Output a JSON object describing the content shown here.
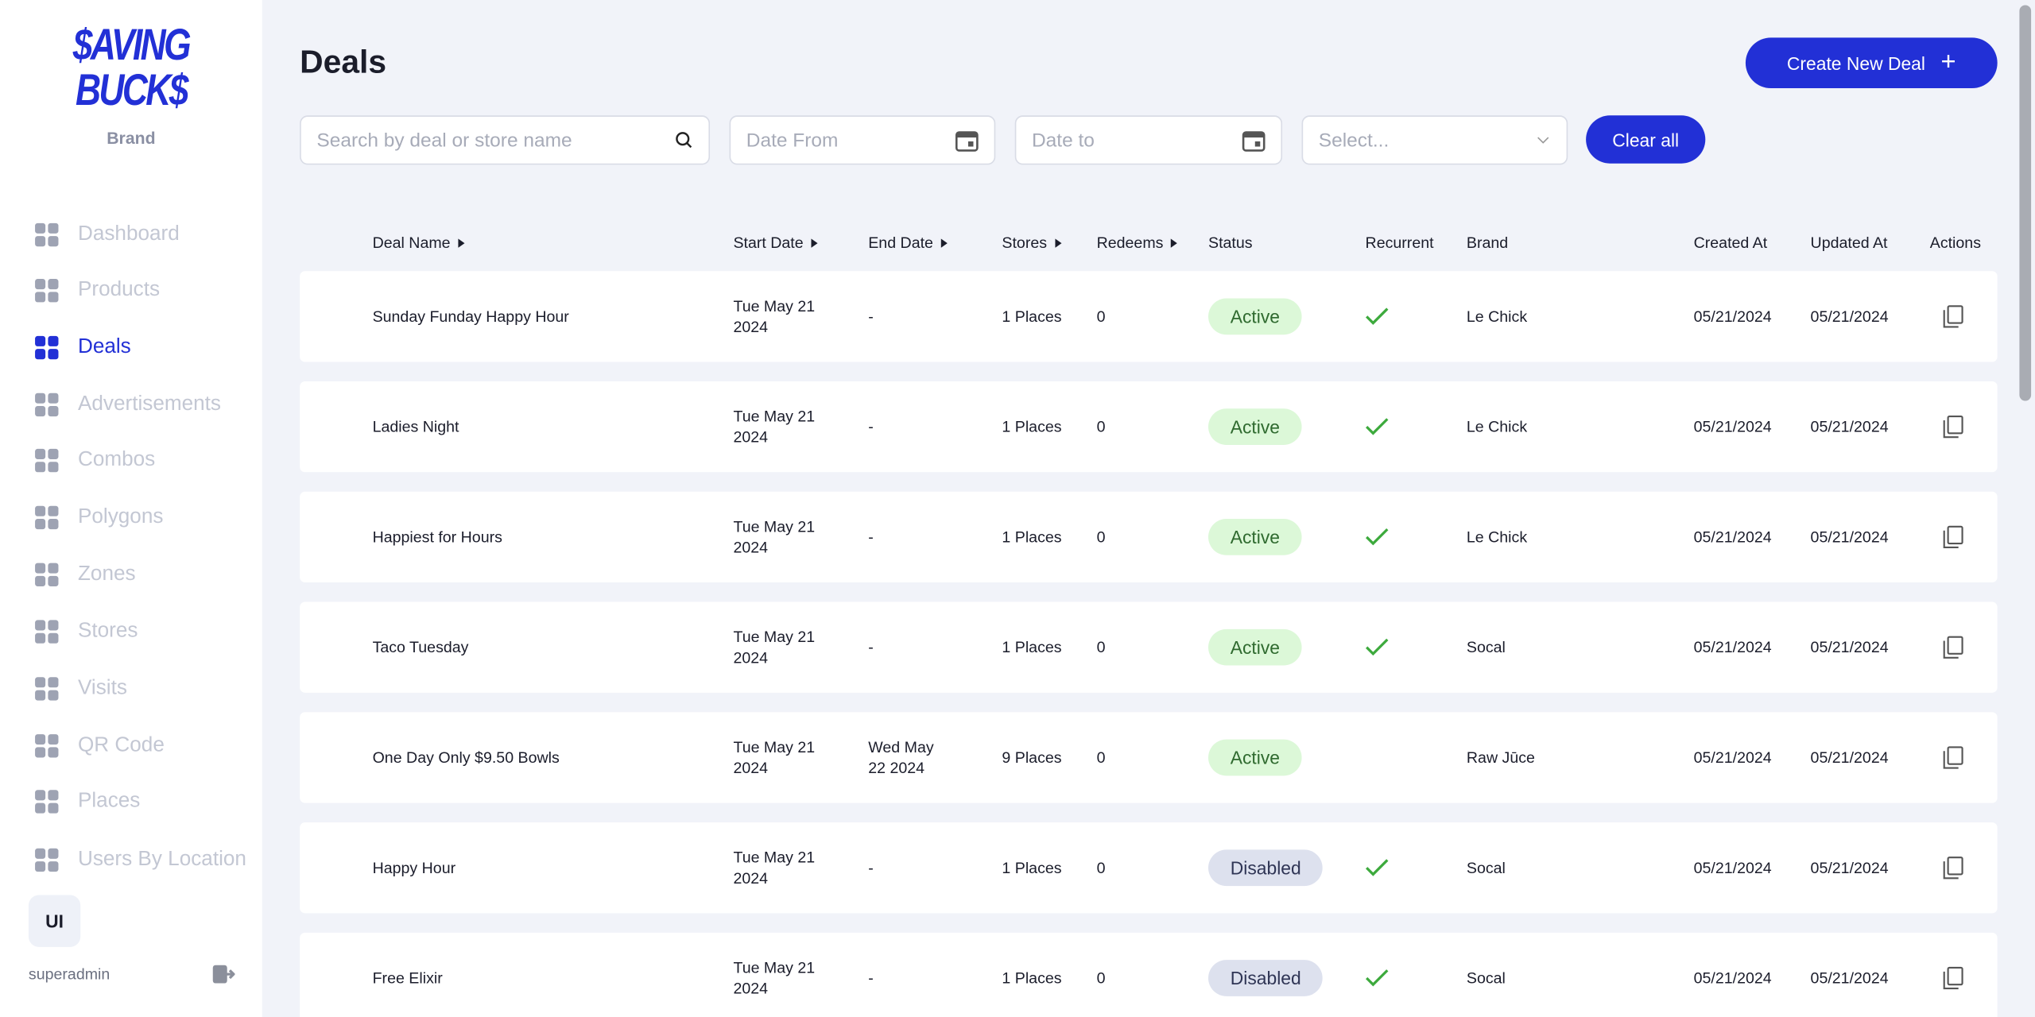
{
  "sidebar": {
    "logo_line1": "$AVING",
    "logo_line2": "BUCK$",
    "brand": "Brand",
    "nav": [
      "Dashboard",
      "Products",
      "Deals",
      "Advertisements",
      "Combos",
      "Polygons",
      "Zones",
      "Stores",
      "Visits",
      "QR Code",
      "Places",
      "Users By Location"
    ],
    "active": "Deals",
    "user_initials": "UI",
    "username": "superadmin"
  },
  "header": {
    "title": "Deals",
    "create_button": "Create New Deal"
  },
  "filters": {
    "search_placeholder": "Search by deal or store name",
    "date_from": "Date From",
    "date_to": "Date to",
    "select": "Select...",
    "clear": "Clear all"
  },
  "table": {
    "columns": [
      "Deal Name",
      "Start Date",
      "End Date",
      "Stores",
      "Redeems",
      "Status",
      "Recurrent",
      "Brand",
      "Created At",
      "Updated At",
      "Actions"
    ],
    "rows": [
      [
        "Sunday Funday Happy Hour",
        "Tue May 21 2024",
        "-",
        "1 Places",
        "0",
        "Active",
        true,
        "Le Chick",
        "05/21/2024",
        "05/21/2024"
      ],
      [
        "Ladies Night",
        "Tue May 21 2024",
        "-",
        "1 Places",
        "0",
        "Active",
        true,
        "Le Chick",
        "05/21/2024",
        "05/21/2024"
      ],
      [
        "Happiest for Hours",
        "Tue May 21 2024",
        "-",
        "1 Places",
        "0",
        "Active",
        true,
        "Le Chick",
        "05/21/2024",
        "05/21/2024"
      ],
      [
        "Taco Tuesday",
        "Tue May 21 2024",
        "-",
        "1 Places",
        "0",
        "Active",
        true,
        "Socal",
        "05/21/2024",
        "05/21/2024"
      ],
      [
        "One Day Only $9.50 Bowls",
        "Tue May 21 2024",
        "Wed May 22 2024",
        "9 Places",
        "0",
        "Active",
        false,
        "Raw Jūce",
        "05/21/2024",
        "05/21/2024"
      ],
      [
        "Happy Hour",
        "Tue May 21 2024",
        "-",
        "1 Places",
        "0",
        "Disabled",
        true,
        "Socal",
        "05/21/2024",
        "05/21/2024"
      ],
      [
        "Free Elixir",
        "Tue May 21 2024",
        "-",
        "1 Places",
        "0",
        "Disabled",
        true,
        "Socal",
        "05/21/2024",
        "05/21/2024"
      ]
    ]
  }
}
